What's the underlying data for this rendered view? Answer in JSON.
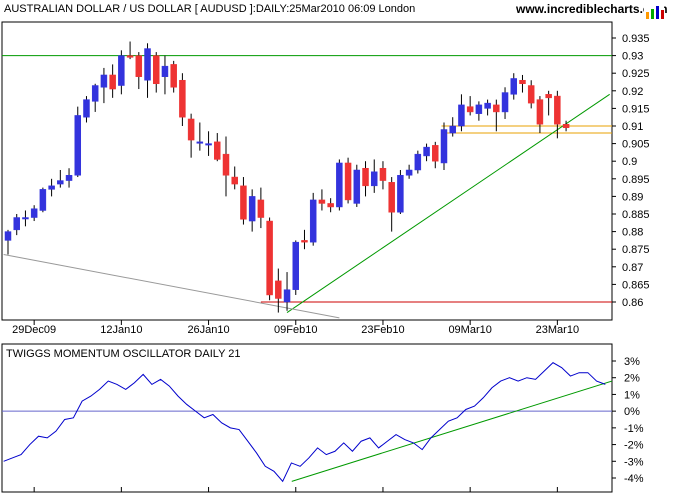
{
  "branding": {
    "site": "www.incrediblecharts.com"
  },
  "chart_data": [
    {
      "type": "candlestick",
      "title": "AUSTRALIAN DOLLAR / US DOLLAR [ AUDUSD ]:DAILY:25Mar2010 06:09 London",
      "ylim": [
        0.855,
        0.937
      ],
      "yticks": [
        "0.935",
        "0.93",
        "0.925",
        "0.92",
        "0.915",
        "0.91",
        "0.905",
        "0.9",
        "0.895",
        "0.89",
        "0.885",
        "0.88",
        "0.875",
        "0.87",
        "0.865",
        "0.86"
      ],
      "xticks": [
        {
          "label": "29Dec09",
          "index": 3
        },
        {
          "label": "12Jan10",
          "index": 13
        },
        {
          "label": "26Jan10",
          "index": 23
        },
        {
          "label": "09Feb10",
          "index": 33
        },
        {
          "label": "23Feb10",
          "index": 43
        },
        {
          "label": "09Mar10",
          "index": 53
        },
        {
          "label": "23Mar10",
          "index": 63
        }
      ],
      "candles": [
        {
          "o": 0.8775,
          "h": 0.8805,
          "l": 0.8735,
          "c": 0.88
        },
        {
          "o": 0.8805,
          "h": 0.885,
          "l": 0.879,
          "c": 0.884
        },
        {
          "o": 0.884,
          "h": 0.886,
          "l": 0.8815,
          "c": 0.884
        },
        {
          "o": 0.884,
          "h": 0.8875,
          "l": 0.883,
          "c": 0.8865
        },
        {
          "o": 0.886,
          "h": 0.8925,
          "l": 0.8855,
          "c": 0.892
        },
        {
          "o": 0.892,
          "h": 0.895,
          "l": 0.89,
          "c": 0.893
        },
        {
          "o": 0.8935,
          "h": 0.8975,
          "l": 0.8925,
          "c": 0.8945
        },
        {
          "o": 0.8945,
          "h": 0.898,
          "l": 0.8925,
          "c": 0.896
        },
        {
          "o": 0.896,
          "h": 0.9155,
          "l": 0.8955,
          "c": 0.913
        },
        {
          "o": 0.9125,
          "h": 0.9185,
          "l": 0.911,
          "c": 0.9175
        },
        {
          "o": 0.917,
          "h": 0.922,
          "l": 0.914,
          "c": 0.9215
        },
        {
          "o": 0.921,
          "h": 0.9265,
          "l": 0.9165,
          "c": 0.9245
        },
        {
          "o": 0.9245,
          "h": 0.9275,
          "l": 0.918,
          "c": 0.9205
        },
        {
          "o": 0.9215,
          "h": 0.9315,
          "l": 0.919,
          "c": 0.93
        },
        {
          "o": 0.93,
          "h": 0.934,
          "l": 0.929,
          "c": 0.9295
        },
        {
          "o": 0.93,
          "h": 0.931,
          "l": 0.9205,
          "c": 0.924
        },
        {
          "o": 0.923,
          "h": 0.9335,
          "l": 0.918,
          "c": 0.932
        },
        {
          "o": 0.93,
          "h": 0.931,
          "l": 0.9195,
          "c": 0.922
        },
        {
          "o": 0.924,
          "h": 0.93,
          "l": 0.919,
          "c": 0.927
        },
        {
          "o": 0.9275,
          "h": 0.9285,
          "l": 0.9195,
          "c": 0.921
        },
        {
          "o": 0.923,
          "h": 0.925,
          "l": 0.91,
          "c": 0.9125
        },
        {
          "o": 0.912,
          "h": 0.9135,
          "l": 0.901,
          "c": 0.906
        },
        {
          "o": 0.9055,
          "h": 0.911,
          "l": 0.903,
          "c": 0.9055
        },
        {
          "o": 0.905,
          "h": 0.9085,
          "l": 0.9015,
          "c": 0.905
        },
        {
          "o": 0.9055,
          "h": 0.908,
          "l": 0.9,
          "c": 0.9005
        },
        {
          "o": 0.902,
          "h": 0.907,
          "l": 0.89,
          "c": 0.896
        },
        {
          "o": 0.8955,
          "h": 0.8985,
          "l": 0.892,
          "c": 0.8935
        },
        {
          "o": 0.893,
          "h": 0.8955,
          "l": 0.882,
          "c": 0.8835
        },
        {
          "o": 0.883,
          "h": 0.892,
          "l": 0.88,
          "c": 0.89
        },
        {
          "o": 0.889,
          "h": 0.8925,
          "l": 0.881,
          "c": 0.884
        },
        {
          "o": 0.883,
          "h": 0.884,
          "l": 0.8605,
          "c": 0.862
        },
        {
          "o": 0.866,
          "h": 0.8695,
          "l": 0.857,
          "c": 0.861
        },
        {
          "o": 0.86,
          "h": 0.8685,
          "l": 0.8575,
          "c": 0.8635
        },
        {
          "o": 0.8635,
          "h": 0.8775,
          "l": 0.862,
          "c": 0.877
        },
        {
          "o": 0.8775,
          "h": 0.8805,
          "l": 0.875,
          "c": 0.877
        },
        {
          "o": 0.877,
          "h": 0.891,
          "l": 0.876,
          "c": 0.889
        },
        {
          "o": 0.889,
          "h": 0.892,
          "l": 0.886,
          "c": 0.888
        },
        {
          "o": 0.888,
          "h": 0.8895,
          "l": 0.8855,
          "c": 0.887
        },
        {
          "o": 0.887,
          "h": 0.9005,
          "l": 0.886,
          "c": 0.8995
        },
        {
          "o": 0.8995,
          "h": 0.901,
          "l": 0.888,
          "c": 0.889
        },
        {
          "o": 0.888,
          "h": 0.899,
          "l": 0.887,
          "c": 0.8975
        },
        {
          "o": 0.898,
          "h": 0.9,
          "l": 0.89,
          "c": 0.893
        },
        {
          "o": 0.893,
          "h": 0.9005,
          "l": 0.891,
          "c": 0.897
        },
        {
          "o": 0.898,
          "h": 0.9,
          "l": 0.892,
          "c": 0.8945
        },
        {
          "o": 0.894,
          "h": 0.8955,
          "l": 0.88,
          "c": 0.8855
        },
        {
          "o": 0.8855,
          "h": 0.8975,
          "l": 0.885,
          "c": 0.896
        },
        {
          "o": 0.896,
          "h": 0.899,
          "l": 0.895,
          "c": 0.8975
        },
        {
          "o": 0.8975,
          "h": 0.903,
          "l": 0.8965,
          "c": 0.902
        },
        {
          "o": 0.9015,
          "h": 0.905,
          "l": 0.9,
          "c": 0.904
        },
        {
          "o": 0.9045,
          "h": 0.9055,
          "l": 0.898,
          "c": 0.9
        },
        {
          "o": 0.8995,
          "h": 0.911,
          "l": 0.8975,
          "c": 0.909
        },
        {
          "o": 0.908,
          "h": 0.9125,
          "l": 0.907,
          "c": 0.91
        },
        {
          "o": 0.91,
          "h": 0.919,
          "l": 0.9085,
          "c": 0.916
        },
        {
          "o": 0.9155,
          "h": 0.9185,
          "l": 0.913,
          "c": 0.914
        },
        {
          "o": 0.9135,
          "h": 0.917,
          "l": 0.9115,
          "c": 0.916
        },
        {
          "o": 0.915,
          "h": 0.9175,
          "l": 0.913,
          "c": 0.9165
        },
        {
          "o": 0.916,
          "h": 0.9175,
          "l": 0.9085,
          "c": 0.914
        },
        {
          "o": 0.914,
          "h": 0.921,
          "l": 0.912,
          "c": 0.9195
        },
        {
          "o": 0.919,
          "h": 0.925,
          "l": 0.9175,
          "c": 0.9235
        },
        {
          "o": 0.923,
          "h": 0.9245,
          "l": 0.9195,
          "c": 0.922
        },
        {
          "o": 0.9215,
          "h": 0.923,
          "l": 0.915,
          "c": 0.9165
        },
        {
          "o": 0.9175,
          "h": 0.9185,
          "l": 0.908,
          "c": 0.9105
        },
        {
          "o": 0.919,
          "h": 0.92,
          "l": 0.913,
          "c": 0.918
        },
        {
          "o": 0.9185,
          "h": 0.92,
          "l": 0.9065,
          "c": 0.9105
        },
        {
          "o": 0.9105,
          "h": 0.9115,
          "l": 0.9085,
          "c": 0.9095
        }
      ],
      "lines": [
        {
          "kind": "horizontal",
          "value": 0.93,
          "color": "#009900"
        },
        {
          "kind": "horizontal",
          "value": 0.86,
          "color": "#cc0000"
        },
        {
          "kind": "horizontal",
          "value": 0.91,
          "from": 52,
          "color": "#e8a000"
        },
        {
          "kind": "horizontal",
          "value": 0.908,
          "from": 52,
          "color": "#e8a000"
        },
        {
          "kind": "trend",
          "x1": 32,
          "y1": 0.857,
          "x2": 69,
          "y2": 0.919,
          "color": "#009900"
        },
        {
          "kind": "trend",
          "x1": -0.5,
          "y1": 0.8735,
          "x2": 38,
          "y2": 0.8555,
          "color": "#999999"
        }
      ]
    },
    {
      "type": "line",
      "title": "TWIGGS MOMENTUM OSCILLATOR DAILY 21",
      "ylim": [
        -4.3,
        3.3
      ],
      "yticks": [
        "3%",
        "2%",
        "1%",
        "0%",
        "-1%",
        "-2%",
        "-3%",
        "-4%"
      ],
      "zero_line": 0,
      "series": [
        {
          "color": "#0000cc",
          "values": [
            -3.0,
            -2.8,
            -2.6,
            -2.0,
            -1.5,
            -1.6,
            -1.2,
            -0.5,
            -0.4,
            0.6,
            0.9,
            1.3,
            1.8,
            1.6,
            1.3,
            1.7,
            2.2,
            1.6,
            1.9,
            1.5,
            0.9,
            0.4,
            0.0,
            -0.4,
            -0.2,
            -0.7,
            -1.0,
            -1.1,
            -1.8,
            -2.5,
            -3.3,
            -3.6,
            -4.2,
            -3.1,
            -3.3,
            -2.8,
            -2.2,
            -2.6,
            -2.4,
            -1.9,
            -2.4,
            -1.8,
            -1.6,
            -2.2,
            -1.8,
            -1.4,
            -1.7,
            -1.9,
            -2.3,
            -1.6,
            -1.1,
            -0.6,
            -0.4,
            0.1,
            0.3,
            0.8,
            1.4,
            1.8,
            2.0,
            1.8,
            2.0,
            1.9,
            2.4,
            2.9,
            2.6,
            2.1,
            2.3,
            2.3,
            1.8,
            1.6
          ]
        }
      ],
      "lines": [
        {
          "kind": "trend",
          "x1": 33,
          "y1": -4.2,
          "x2": 70,
          "y2": 1.8,
          "color": "#009900"
        }
      ]
    }
  ]
}
